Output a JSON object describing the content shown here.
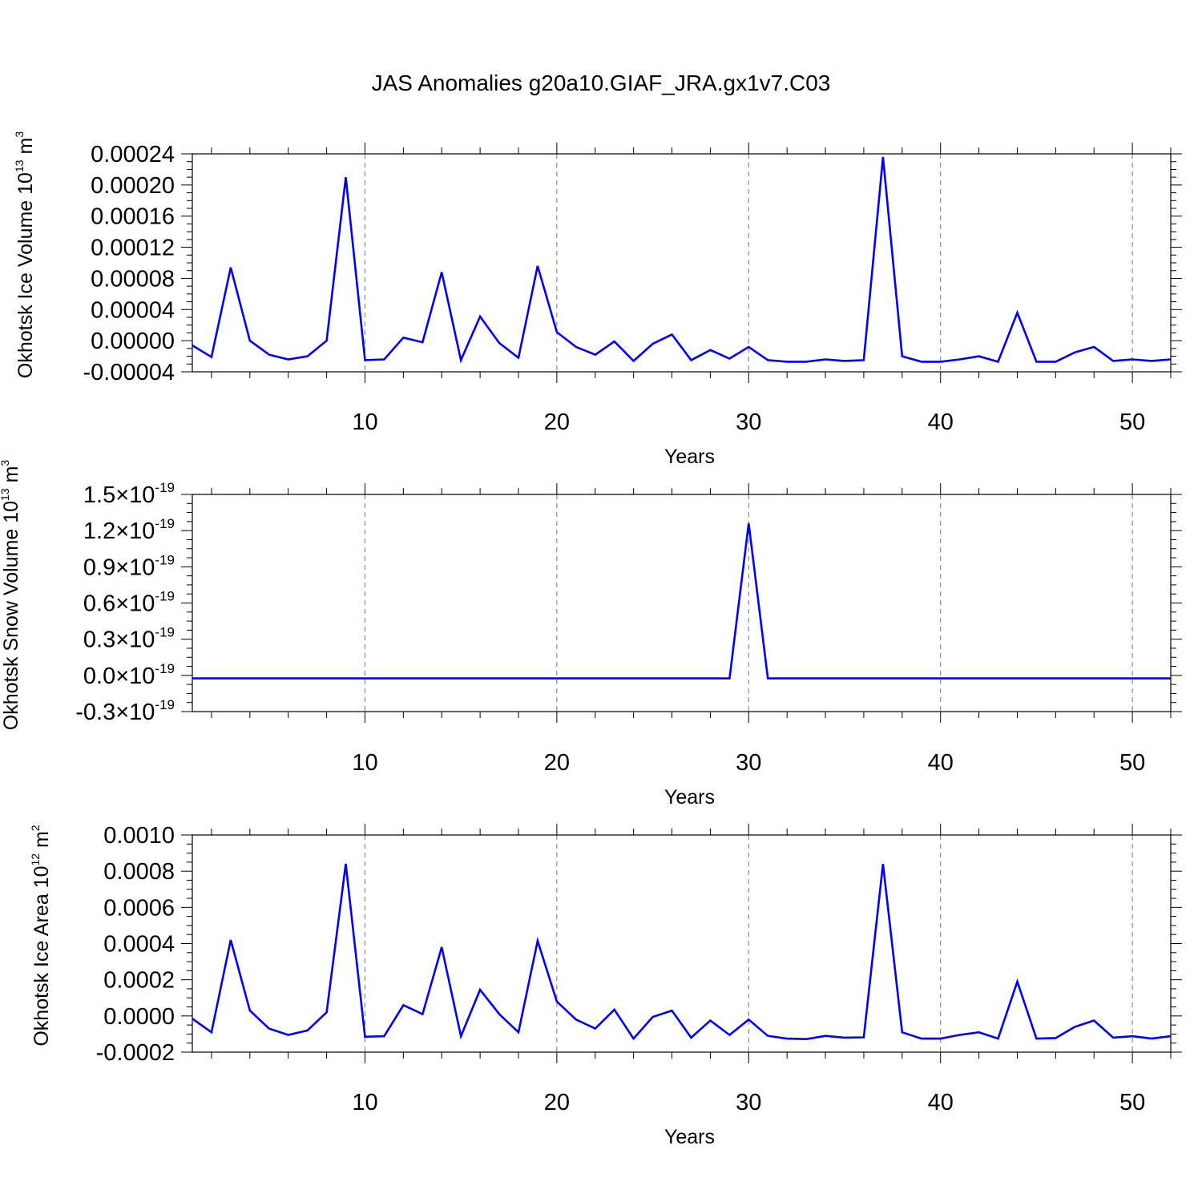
{
  "title": "JAS Anomalies g20a10.GIAF_JRA.gx1v7.C03",
  "line_color": "#0000ff",
  "chart_data": [
    {
      "type": "line",
      "title": "",
      "xlabel": "Years",
      "ylabel": "Okhotsk Ice Volume 10",
      "ylabel_sup": "13",
      "ylabel_unit": "m",
      "ylabel_unit_sup": "3",
      "xlim": [
        1,
        52
      ],
      "ylim": [
        -4e-05,
        0.00024
      ],
      "x_ticks": [
        10,
        20,
        30,
        40,
        50
      ],
      "x_tick_labels": [
        "10",
        "20",
        "30",
        "40",
        "50"
      ],
      "y_ticks": [
        -4e-05,
        0.0,
        4e-05,
        8e-05,
        0.00012,
        0.00016,
        0.0002,
        0.00024
      ],
      "y_tick_labels": [
        "-0.00004",
        "0.00000",
        "0.00004",
        "0.00008",
        "0.00012",
        "0.00016",
        "0.00020",
        "0.00024"
      ],
      "grid": "vertical dashed",
      "x": [
        1,
        2,
        3,
        4,
        5,
        6,
        7,
        8,
        9,
        10,
        11,
        12,
        13,
        14,
        15,
        16,
        17,
        18,
        19,
        20,
        21,
        22,
        23,
        24,
        25,
        26,
        27,
        28,
        29,
        30,
        31,
        32,
        33,
        34,
        35,
        36,
        37,
        38,
        39,
        40,
        41,
        42,
        43,
        44,
        45,
        46,
        47,
        48,
        49,
        50,
        51,
        52
      ],
      "series": [
        {
          "values": [
            -6e-06,
            -2.1e-05,
            9.4e-05,
            0.0,
            -1.8e-05,
            -2.4e-05,
            -2e-05,
            0.0,
            0.00021,
            -2.5e-05,
            -2.4e-05,
            4e-06,
            -2e-06,
            8.8e-05,
            -2.5e-05,
            3.1e-05,
            -3e-06,
            -2.2e-05,
            9.6e-05,
            1.1e-05,
            -8e-06,
            -1.8e-05,
            -1e-06,
            -2.6e-05,
            -4e-06,
            8e-06,
            -2.5e-05,
            -1.2e-05,
            -2.3e-05,
            -8e-06,
            -2.5e-05,
            -2.7e-05,
            -2.7e-05,
            -2.4e-05,
            -2.6e-05,
            -2.5e-05,
            0.000236,
            -2e-05,
            -2.7e-05,
            -2.7e-05,
            -2.4e-05,
            -2e-05,
            -2.7e-05,
            3.6e-05,
            -2.7e-05,
            -2.7e-05,
            -1.5e-05,
            -8e-06,
            -2.6e-05,
            -2.4e-05,
            -2.6e-05,
            -2.4e-05
          ]
        }
      ]
    },
    {
      "type": "line",
      "title": "",
      "xlabel": "Years",
      "ylabel": "Okhotsk Snow Volume 10",
      "ylabel_sup": "13",
      "ylabel_unit": "m",
      "ylabel_unit_sup": "3",
      "xlim": [
        1,
        52
      ],
      "ylim": [
        -0.3,
        1.5
      ],
      "y_scale_note": "×10^-19",
      "x_ticks": [
        10,
        20,
        30,
        40,
        50
      ],
      "x_tick_labels": [
        "10",
        "20",
        "30",
        "40",
        "50"
      ],
      "y_ticks": [
        -0.3,
        0.0,
        0.3,
        0.6,
        0.9,
        1.2,
        1.5
      ],
      "y_tick_mantissa": [
        "-0.3",
        "0.0",
        "0.3",
        "0.6",
        "0.9",
        "1.2",
        "1.5"
      ],
      "y_tick_times": "×10",
      "y_tick_exponent": "-19",
      "grid": "vertical dashed",
      "x": [
        1,
        2,
        3,
        4,
        5,
        6,
        7,
        8,
        9,
        10,
        11,
        12,
        13,
        14,
        15,
        16,
        17,
        18,
        19,
        20,
        21,
        22,
        23,
        24,
        25,
        26,
        27,
        28,
        29,
        30,
        31,
        32,
        33,
        34,
        35,
        36,
        37,
        38,
        39,
        40,
        41,
        42,
        43,
        44,
        45,
        46,
        47,
        48,
        49,
        50,
        51,
        52
      ],
      "series": [
        {
          "values": [
            -0.025,
            -0.025,
            -0.025,
            -0.025,
            -0.025,
            -0.025,
            -0.025,
            -0.025,
            -0.025,
            -0.025,
            -0.025,
            -0.025,
            -0.025,
            -0.025,
            -0.025,
            -0.025,
            -0.025,
            -0.025,
            -0.025,
            -0.025,
            -0.025,
            -0.025,
            -0.025,
            -0.025,
            -0.025,
            -0.025,
            -0.025,
            -0.025,
            -0.025,
            1.26,
            -0.025,
            -0.025,
            -0.025,
            -0.025,
            -0.025,
            -0.025,
            -0.025,
            -0.025,
            -0.025,
            -0.025,
            -0.025,
            -0.025,
            -0.025,
            -0.025,
            -0.025,
            -0.025,
            -0.025,
            -0.025,
            -0.025,
            -0.025,
            -0.025,
            -0.025
          ]
        }
      ]
    },
    {
      "type": "line",
      "title": "",
      "xlabel": "Years",
      "ylabel": "Okhotsk Ice Area 10",
      "ylabel_sup": "12",
      "ylabel_unit": "m",
      "ylabel_unit_sup": "2",
      "xlim": [
        1,
        52
      ],
      "ylim": [
        -0.0002,
        0.001
      ],
      "x_ticks": [
        10,
        20,
        30,
        40,
        50
      ],
      "x_tick_labels": [
        "10",
        "20",
        "30",
        "40",
        "50"
      ],
      "y_ticks": [
        -0.0002,
        0.0,
        0.0002,
        0.0004,
        0.0006,
        0.0008,
        0.001
      ],
      "y_tick_labels": [
        "-0.0002",
        "0.0000",
        "0.0002",
        "0.0004",
        "0.0006",
        "0.0008",
        "0.0010"
      ],
      "grid": "vertical dashed",
      "x": [
        1,
        2,
        3,
        4,
        5,
        6,
        7,
        8,
        9,
        10,
        11,
        12,
        13,
        14,
        15,
        16,
        17,
        18,
        19,
        20,
        21,
        22,
        23,
        24,
        25,
        26,
        27,
        28,
        29,
        30,
        31,
        32,
        33,
        34,
        35,
        36,
        37,
        38,
        39,
        40,
        41,
        42,
        43,
        44,
        45,
        46,
        47,
        48,
        49,
        50,
        51,
        52
      ],
      "series": [
        {
          "values": [
            -1.5e-05,
            -9e-05,
            0.00042,
            3e-05,
            -7e-05,
            -0.000105,
            -8e-05,
            2e-05,
            0.00084,
            -0.000115,
            -0.000112,
            6e-05,
            1e-05,
            0.00038,
            -0.000112,
            0.000145,
            1e-05,
            -9e-05,
            0.000415,
            8e-05,
            -2e-05,
            -7e-05,
            3.5e-05,
            -0.000125,
            -5e-06,
            3e-05,
            -0.00012,
            -2.5e-05,
            -0.000105,
            -2e-05,
            -0.00011,
            -0.000125,
            -0.000128,
            -0.00011,
            -0.00012,
            -0.000118,
            0.00084,
            -9e-05,
            -0.000125,
            -0.000125,
            -0.000105,
            -9e-05,
            -0.000125,
            0.00019,
            -0.000125,
            -0.000122,
            -6e-05,
            -2.5e-05,
            -0.00012,
            -0.000112,
            -0.000125,
            -0.000112
          ]
        }
      ]
    }
  ]
}
